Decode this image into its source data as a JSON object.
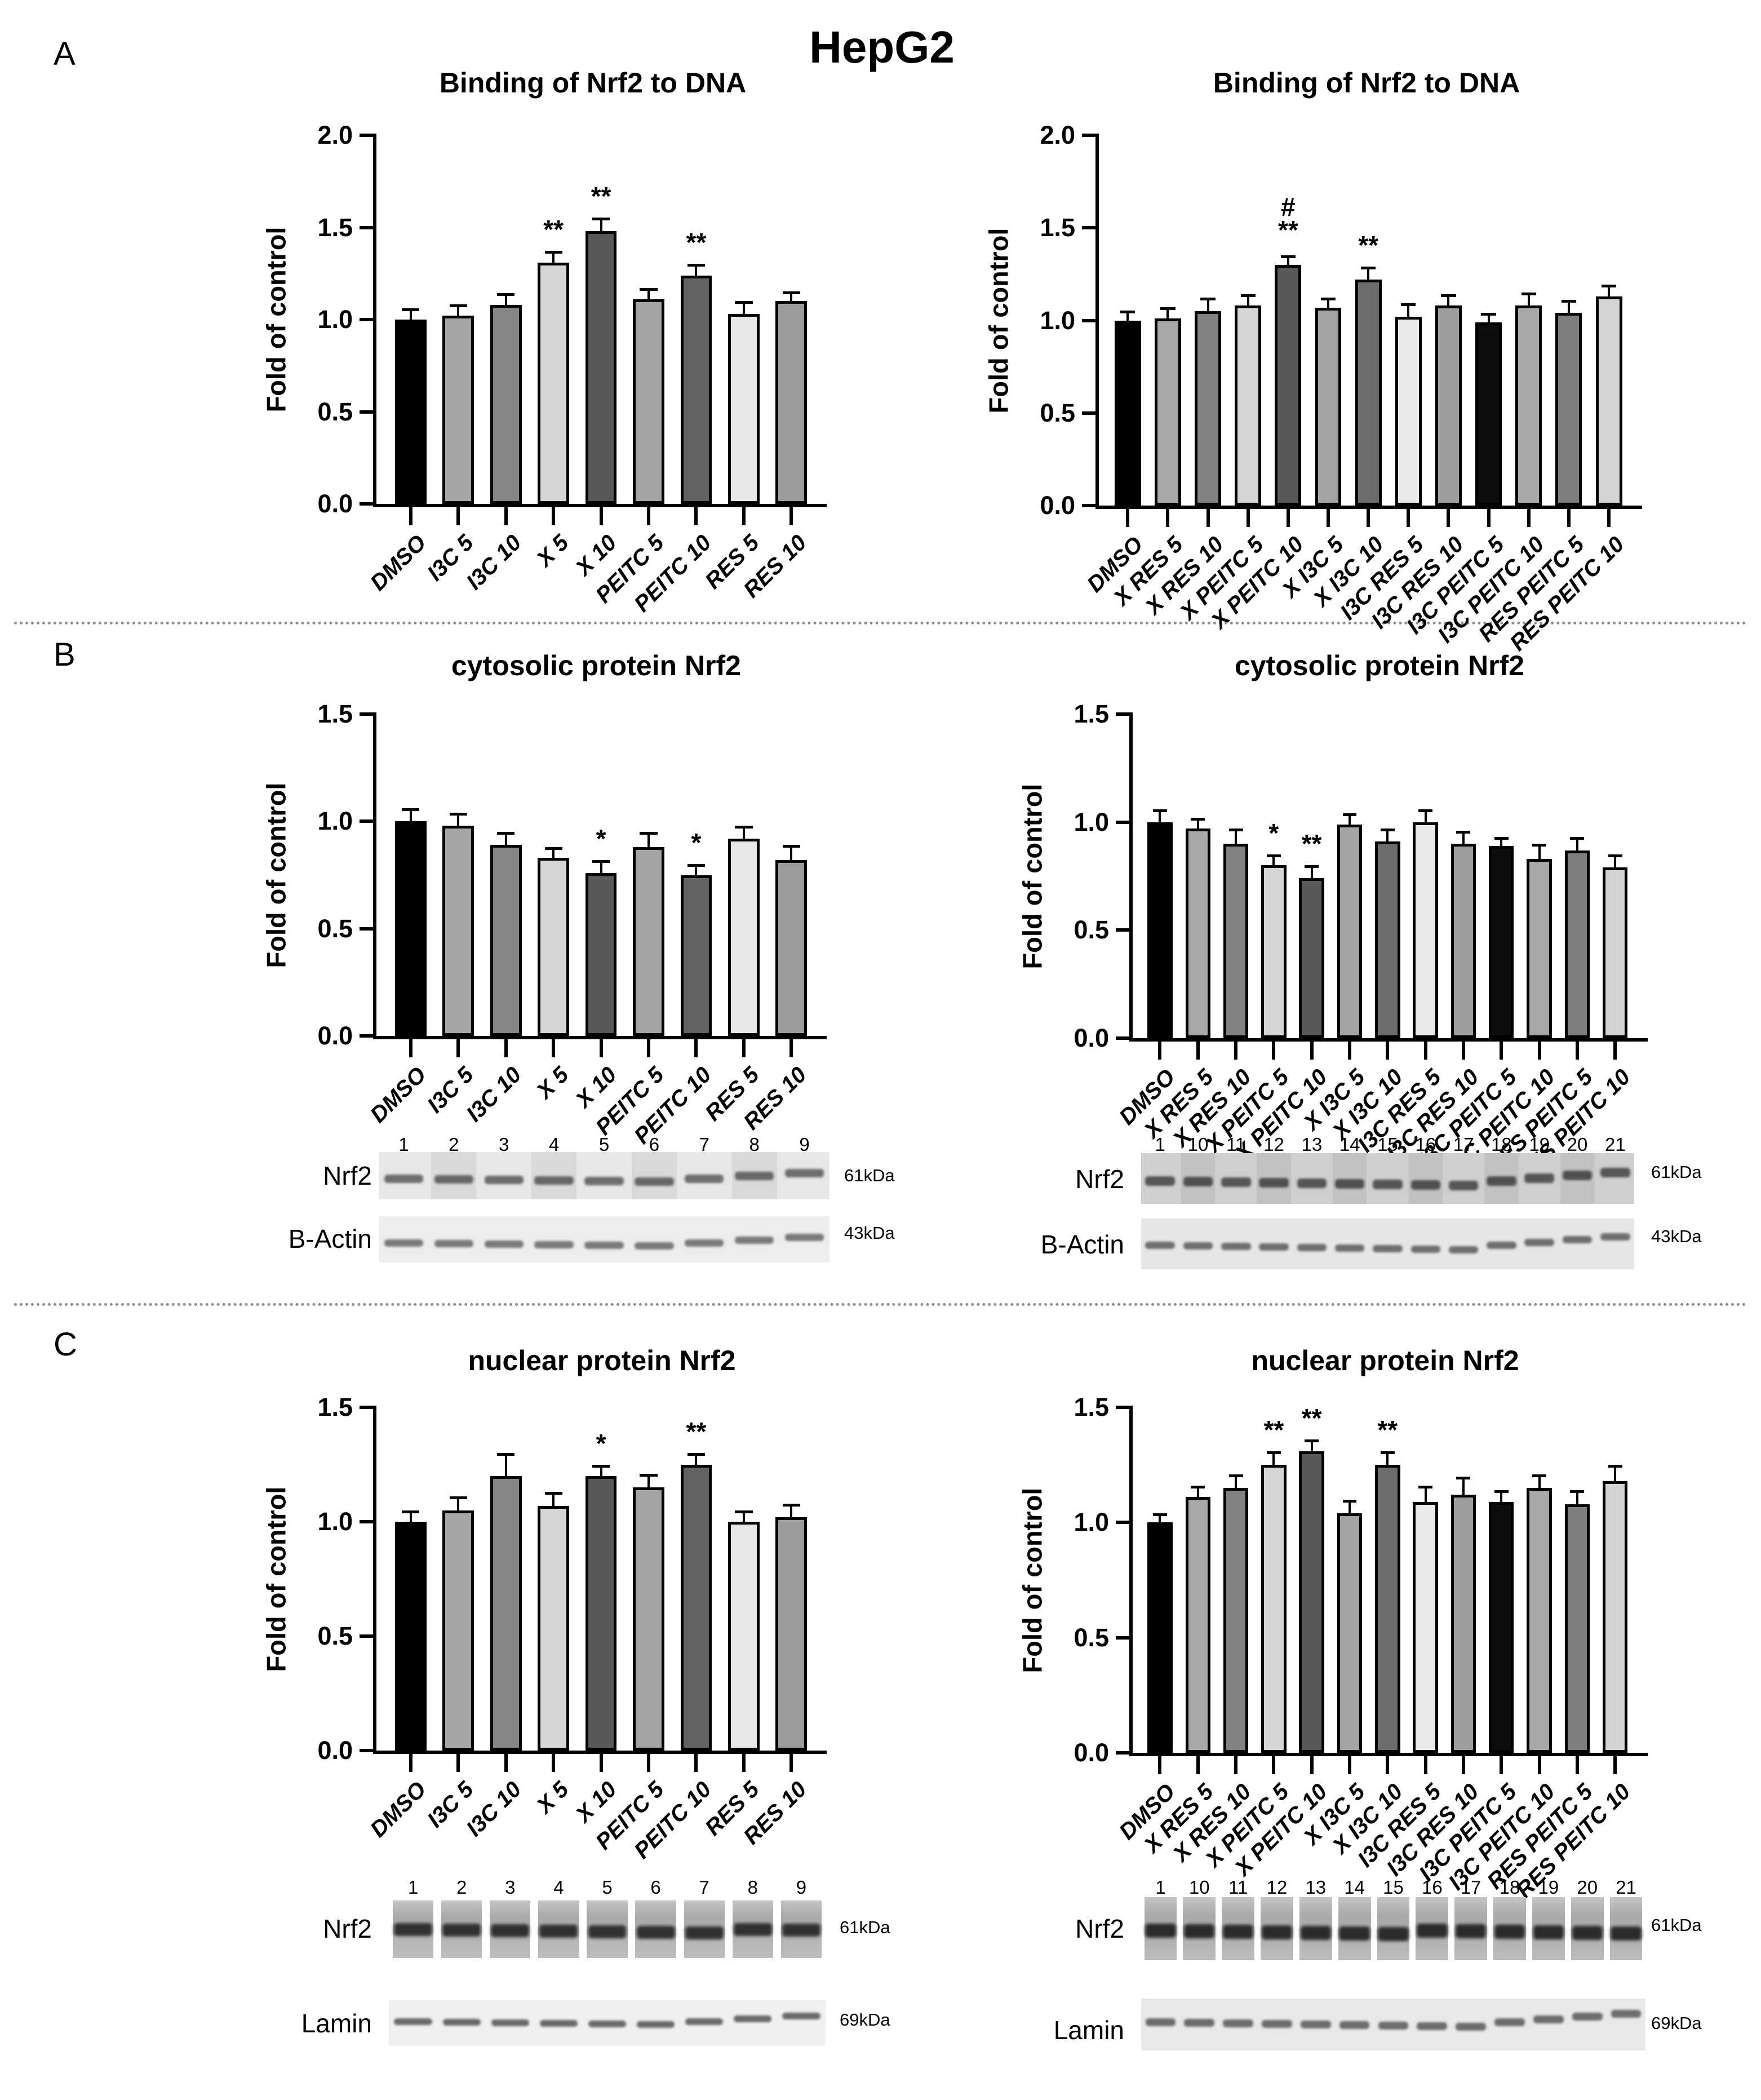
{
  "figure_title": "HepG2",
  "panels": [
    {
      "label": "A"
    },
    {
      "label": "B",
      "blots": {
        "left": {
          "lane_numbers": [
            "1",
            "2",
            "3",
            "4",
            "5",
            "6",
            "7",
            "8",
            "9"
          ],
          "rows": [
            {
              "label": "Nrf2",
              "kda": "61kDa"
            },
            {
              "label": "B-Actin",
              "kda": "43kDa"
            }
          ]
        },
        "right": {
          "lane_numbers": [
            "1",
            "10",
            "11",
            "12",
            "13",
            "14",
            "15",
            "16",
            "17",
            "18",
            "19",
            "20",
            "21"
          ],
          "rows": [
            {
              "label": "Nrf2",
              "kda": "61kDa"
            },
            {
              "label": "B-Actin",
              "kda": "43kDa"
            }
          ]
        }
      }
    },
    {
      "label": "C",
      "blots": {
        "left": {
          "lane_numbers": [
            "1",
            "2",
            "3",
            "4",
            "5",
            "6",
            "7",
            "8",
            "9"
          ],
          "rows": [
            {
              "label": "Nrf2",
              "kda": "61kDa"
            },
            {
              "label": "Lamin",
              "kda": "69kDa"
            }
          ]
        },
        "right": {
          "lane_numbers": [
            "1",
            "10",
            "11",
            "12",
            "13",
            "14",
            "15",
            "16",
            "17",
            "18",
            "19",
            "20",
            "21"
          ],
          "rows": [
            {
              "label": "Nrf2",
              "kda": "61kDa"
            },
            {
              "label": "Lamin",
              "kda": "69kDa"
            }
          ]
        }
      }
    }
  ],
  "chart_data": [
    {
      "type": "bar",
      "panel": "A",
      "position": "left",
      "title": "Binding of Nrf2 to DNA",
      "xlabel": "",
      "ylabel": "Fold of control",
      "ylim": [
        0,
        2.0
      ],
      "yticks": [
        "0.0",
        "0.5",
        "1.0",
        "1.5",
        "2.0"
      ],
      "grid": false,
      "legend": "none",
      "categories": [
        "DMSO",
        "I3C 5",
        "I3C 10",
        "X 5",
        "X 10",
        "PEITC 5",
        "PEITC 10",
        "RES 5",
        "RES 10"
      ],
      "values": [
        1.0,
        1.02,
        1.08,
        1.31,
        1.48,
        1.11,
        1.24,
        1.03,
        1.1
      ],
      "errors": [
        0.05,
        0.05,
        0.05,
        0.05,
        0.06,
        0.05,
        0.05,
        0.06,
        0.04
      ],
      "significance": [
        "",
        "",
        "",
        "**",
        "**",
        "",
        "**",
        "",
        ""
      ],
      "bar_colors": [
        "#000000",
        "#a6a6a6",
        "#858585",
        "#d6d6d6",
        "#595959",
        "#a3a3a3",
        "#636363",
        "#e7e7e7",
        "#9c9c9c"
      ]
    },
    {
      "type": "bar",
      "panel": "A",
      "position": "right",
      "title": "Binding of Nrf2 to DNA",
      "xlabel": "",
      "ylabel": "Fold of control",
      "ylim": [
        0,
        2.0
      ],
      "yticks": [
        "0.0",
        "0.5",
        "1.0",
        "1.5",
        "2.0"
      ],
      "grid": false,
      "legend": "none",
      "categories": [
        "DMSO",
        "X RES 5",
        "X RES 10",
        "X PEITC 5",
        "X PEITC 10",
        "X I3C 5",
        "X I3C 10",
        "I3C RES 5",
        "I3C RES 10",
        "I3C PEITC 5",
        "I3C PEITC 10",
        "RES PEITC 5",
        "RES PEITC 10"
      ],
      "values": [
        1.0,
        1.01,
        1.05,
        1.08,
        1.3,
        1.07,
        1.22,
        1.02,
        1.08,
        0.99,
        1.08,
        1.04,
        1.13
      ],
      "errors": [
        0.04,
        0.05,
        0.06,
        0.05,
        0.04,
        0.04,
        0.06,
        0.06,
        0.05,
        0.04,
        0.06,
        0.06,
        0.05
      ],
      "significance": [
        "",
        "",
        "",
        "",
        "#\n**",
        "",
        "**",
        "",
        "",
        "",
        "",
        "",
        ""
      ],
      "bar_colors": [
        "#000000",
        "#a8a8a8",
        "#828282",
        "#d6d6d6",
        "#595959",
        "#a3a3a3",
        "#6d6d6d",
        "#eaeaea",
        "#9e9e9e",
        "#0d0d0d",
        "#a8a8a8",
        "#7e7e7e",
        "#d3d3d3"
      ]
    },
    {
      "type": "bar",
      "panel": "B",
      "position": "left",
      "title": "cytosolic protein Nrf2",
      "xlabel": "",
      "ylabel": "Fold of control",
      "ylim": [
        0,
        1.5
      ],
      "yticks": [
        "0.0",
        "0.5",
        "1.0",
        "1.5"
      ],
      "grid": false,
      "legend": "none",
      "categories": [
        "DMSO",
        "I3C 5",
        "I3C 10",
        "X 5",
        "X 10",
        "PEITC 5",
        "PEITC 10",
        "RES 5",
        "RES 10"
      ],
      "values": [
        1.0,
        0.98,
        0.89,
        0.83,
        0.76,
        0.88,
        0.75,
        0.92,
        0.82
      ],
      "errors": [
        0.05,
        0.05,
        0.05,
        0.04,
        0.05,
        0.06,
        0.04,
        0.05,
        0.06
      ],
      "significance": [
        "",
        "",
        "",
        "",
        "*",
        "",
        "*",
        "",
        ""
      ],
      "bar_colors": [
        "#000000",
        "#a6a6a6",
        "#858585",
        "#d6d6d6",
        "#595959",
        "#a3a3a3",
        "#636363",
        "#e7e7e7",
        "#9c9c9c"
      ]
    },
    {
      "type": "bar",
      "panel": "B",
      "position": "right",
      "title": "cytosolic protein Nrf2",
      "xlabel": "",
      "ylabel": "Fold of control",
      "ylim": [
        0,
        1.5
      ],
      "yticks": [
        "0.0",
        "0.5",
        "1.0",
        "1.5"
      ],
      "grid": false,
      "legend": "none",
      "categories": [
        "DMSO",
        "X RES 5",
        "X RES 10",
        "X PEITC 5",
        "X PEITC 10",
        "X I3C 5",
        "X I3C 10",
        "I3C RES 5",
        "I3C RES 10",
        "I3C PEITC 5",
        "I3C PEITC 10",
        "RES PEITC 5",
        "RES PEITC 10"
      ],
      "values": [
        1.0,
        0.97,
        0.9,
        0.8,
        0.74,
        0.99,
        0.91,
        1.0,
        0.9,
        0.89,
        0.83,
        0.87,
        0.79
      ],
      "errors": [
        0.05,
        0.04,
        0.06,
        0.04,
        0.05,
        0.04,
        0.05,
        0.05,
        0.05,
        0.03,
        0.06,
        0.05,
        0.05
      ],
      "significance": [
        "",
        "",
        "",
        "*",
        "**",
        "",
        "",
        "",
        "",
        "",
        "",
        "",
        ""
      ],
      "bar_colors": [
        "#000000",
        "#a8a8a8",
        "#828282",
        "#d6d6d6",
        "#595959",
        "#a3a3a3",
        "#6d6d6d",
        "#eaeaea",
        "#9e9e9e",
        "#0d0d0d",
        "#a8a8a8",
        "#7e7e7e",
        "#d3d3d3"
      ]
    },
    {
      "type": "bar",
      "panel": "C",
      "position": "left",
      "title": "nuclear protein Nrf2",
      "xlabel": "",
      "ylabel": "Fold of control",
      "ylim": [
        0,
        1.5
      ],
      "yticks": [
        "0.0",
        "0.5",
        "1.0",
        "1.5"
      ],
      "grid": false,
      "legend": "none",
      "categories": [
        "DMSO",
        "I3C 5",
        "I3C 10",
        "X 5",
        "X 10",
        "PEITC 5",
        "PEITC 10",
        "RES 5",
        "RES 10"
      ],
      "values": [
        1.0,
        1.05,
        1.2,
        1.07,
        1.2,
        1.15,
        1.25,
        1.0,
        1.02
      ],
      "errors": [
        0.04,
        0.05,
        0.09,
        0.05,
        0.04,
        0.05,
        0.04,
        0.04,
        0.05
      ],
      "significance": [
        "",
        "",
        "",
        "",
        "*",
        "",
        "**",
        "",
        ""
      ],
      "bar_colors": [
        "#000000",
        "#a6a6a6",
        "#858585",
        "#d6d6d6",
        "#595959",
        "#a3a3a3",
        "#636363",
        "#e7e7e7",
        "#9c9c9c"
      ]
    },
    {
      "type": "bar",
      "panel": "C",
      "position": "right",
      "title": "nuclear protein Nrf2",
      "xlabel": "",
      "ylabel": "Fold of control",
      "ylim": [
        0,
        1.5
      ],
      "yticks": [
        "0.0",
        "0.5",
        "1.0",
        "1.5"
      ],
      "grid": false,
      "legend": "none",
      "categories": [
        "DMSO",
        "X RES 5",
        "X RES 10",
        "X PEITC 5",
        "X PEITC 10",
        "X I3C 5",
        "X I3C 10",
        "I3C RES 5",
        "I3C RES 10",
        "I3C PEITC 5",
        "I3C PEITC 10",
        "RES PEITC 5",
        "RES PEITC 10"
      ],
      "values": [
        1.0,
        1.11,
        1.15,
        1.25,
        1.31,
        1.04,
        1.25,
        1.09,
        1.12,
        1.09,
        1.15,
        1.08,
        1.18
      ],
      "errors": [
        0.03,
        0.04,
        0.05,
        0.05,
        0.04,
        0.05,
        0.05,
        0.06,
        0.07,
        0.04,
        0.05,
        0.05,
        0.06
      ],
      "significance": [
        "",
        "",
        "",
        "**",
        "**",
        "",
        "**",
        "",
        "",
        "",
        "",
        "",
        ""
      ],
      "bar_colors": [
        "#000000",
        "#a8a8a8",
        "#828282",
        "#d6d6d6",
        "#595959",
        "#a3a3a3",
        "#6d6d6d",
        "#eaeaea",
        "#9e9e9e",
        "#0d0d0d",
        "#a8a8a8",
        "#7e7e7e",
        "#d3d3d3"
      ]
    }
  ]
}
